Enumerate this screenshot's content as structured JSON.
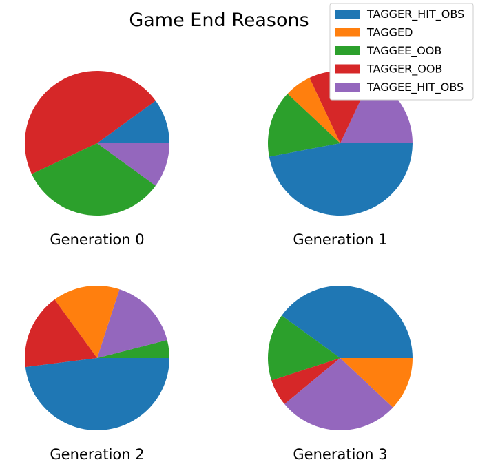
{
  "chart_data": {
    "type": "pie",
    "title": "Game End Reasons",
    "legend_position": "top-right",
    "legend": [
      {
        "name": "TAGGER_HIT_OBS",
        "color": "#1f77b4"
      },
      {
        "name": "TAGGED",
        "color": "#ff7f0e"
      },
      {
        "name": "TAGGEE_OOB",
        "color": "#2ca02c"
      },
      {
        "name": "TAGGER_OOB",
        "color": "#d62728"
      },
      {
        "name": "TAGGEE_HIT_OBS",
        "color": "#9467bd"
      }
    ],
    "charts": [
      {
        "label": "Generation 0",
        "slices": [
          {
            "name": "TAGGER_HIT_OBS",
            "value": 10
          },
          {
            "name": "TAGGER_OOB",
            "value": 47
          },
          {
            "name": "TAGGEE_OOB",
            "value": 33
          },
          {
            "name": "TAGGEE_HIT_OBS",
            "value": 10
          }
        ]
      },
      {
        "label": "Generation 1",
        "slices": [
          {
            "name": "TAGGEE_HIT_OBS",
            "value": 18
          },
          {
            "name": "TAGGER_OOB",
            "value": 14
          },
          {
            "name": "TAGGED",
            "value": 6
          },
          {
            "name": "TAGGEE_OOB",
            "value": 15
          },
          {
            "name": "TAGGER_HIT_OBS",
            "value": 47
          }
        ]
      },
      {
        "label": "Generation 2",
        "slices": [
          {
            "name": "TAGGEE_OOB",
            "value": 4
          },
          {
            "name": "TAGGEE_HIT_OBS",
            "value": 16
          },
          {
            "name": "TAGGED",
            "value": 15
          },
          {
            "name": "TAGGER_OOB",
            "value": 17
          },
          {
            "name": "TAGGER_HIT_OBS",
            "value": 48
          }
        ]
      },
      {
        "label": "Generation 3",
        "slices": [
          {
            "name": "TAGGER_HIT_OBS",
            "value": 40
          },
          {
            "name": "TAGGEE_OOB",
            "value": 15
          },
          {
            "name": "TAGGER_OOB",
            "value": 6
          },
          {
            "name": "TAGGEE_HIT_OBS",
            "value": 27
          },
          {
            "name": "TAGGED",
            "value": 12
          }
        ]
      }
    ]
  }
}
